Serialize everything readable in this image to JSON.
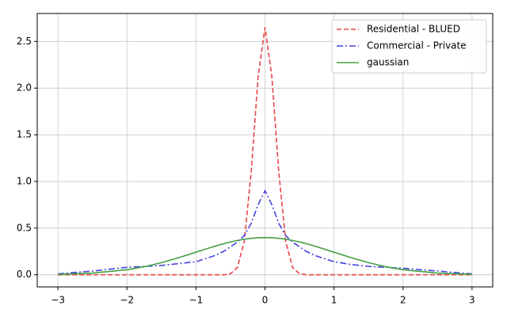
{
  "chart_data": {
    "type": "line",
    "x": [
      -3,
      -2.5,
      -2,
      -1.75,
      -1.5,
      -1.25,
      -1,
      -0.75,
      -0.6,
      -0.5,
      -0.4,
      -0.3,
      -0.2,
      -0.1,
      0,
      0.1,
      0.2,
      0.3,
      0.4,
      0.5,
      0.6,
      0.75,
      1,
      1.25,
      1.5,
      1.75,
      2,
      2.5,
      3
    ],
    "series": [
      {
        "name": "Residential - BLUED",
        "color": "#e84545",
        "dash": "6,3",
        "values": [
          0,
          0,
          0,
          0,
          0,
          0,
          0,
          0,
          0,
          0.011,
          0.078,
          0.36,
          1.1,
          2.12,
          2.65,
          2.12,
          1.1,
          0.36,
          0.078,
          0.011,
          0,
          0,
          0,
          0,
          0,
          0,
          0,
          0,
          0
        ]
      },
      {
        "name": "Commercial - Private",
        "color": "#4545e0",
        "dash": "8,3,2,3",
        "values": [
          0.01,
          0.04,
          0.08,
          0.09,
          0.1,
          0.12,
          0.14,
          0.2,
          0.25,
          0.3,
          0.35,
          0.42,
          0.55,
          0.75,
          0.9,
          0.75,
          0.55,
          0.42,
          0.35,
          0.3,
          0.25,
          0.2,
          0.14,
          0.11,
          0.09,
          0.08,
          0.07,
          0.04,
          0.01
        ]
      },
      {
        "name": "gaussian",
        "color": "#45a045",
        "dash": "none",
        "values": [
          0.004,
          0.018,
          0.054,
          0.086,
          0.13,
          0.183,
          0.242,
          0.301,
          0.333,
          0.352,
          0.368,
          0.381,
          0.391,
          0.397,
          0.399,
          0.397,
          0.391,
          0.381,
          0.368,
          0.352,
          0.333,
          0.301,
          0.242,
          0.183,
          0.13,
          0.086,
          0.054,
          0.018,
          0.004
        ]
      }
    ],
    "xlim": [
      -3.3,
      3.3
    ],
    "ylim": [
      -0.13,
      2.8
    ],
    "xticks": [
      {
        "value": -3,
        "label": "−3"
      },
      {
        "value": -2,
        "label": "−2"
      },
      {
        "value": -1,
        "label": "−1"
      },
      0,
      1,
      2,
      3
    ],
    "yticks": [
      {
        "value": 0,
        "label": "0.0"
      },
      {
        "value": 0.5,
        "label": "0.5"
      },
      {
        "value": 1,
        "label": "1.0"
      },
      {
        "value": 1.5,
        "label": "1.5"
      },
      {
        "value": 2,
        "label": "2.0"
      },
      {
        "value": 2.5,
        "label": "2.5"
      }
    ],
    "grid": true,
    "legend": "upper-right"
  }
}
